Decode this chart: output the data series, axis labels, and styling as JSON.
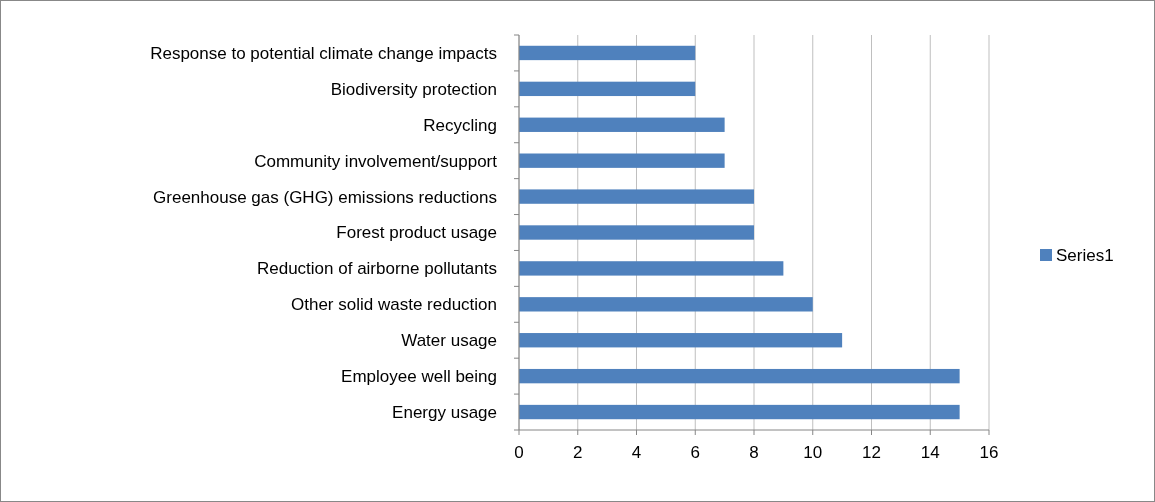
{
  "chart_data": {
    "type": "bar",
    "orientation": "horizontal",
    "categories": [
      "Response to potential climate change impacts",
      "Biodiversity protection",
      "Recycling",
      "Community involvement/support",
      "Greenhouse gas (GHG) emissions reductions",
      "Forest product usage",
      "Reduction of airborne pollutants",
      "Other solid waste reduction",
      "Water usage",
      "Employee well being",
      "Energy usage"
    ],
    "series": [
      {
        "name": "Series1",
        "color": "#4f81bd",
        "values": [
          6,
          6,
          7,
          7,
          8,
          8,
          9,
          10,
          11,
          15,
          15
        ]
      }
    ],
    "xlim": [
      0,
      16
    ],
    "xticks": [
      0,
      2,
      4,
      6,
      8,
      10,
      12,
      14,
      16
    ],
    "grid": "x",
    "legend": "right"
  }
}
